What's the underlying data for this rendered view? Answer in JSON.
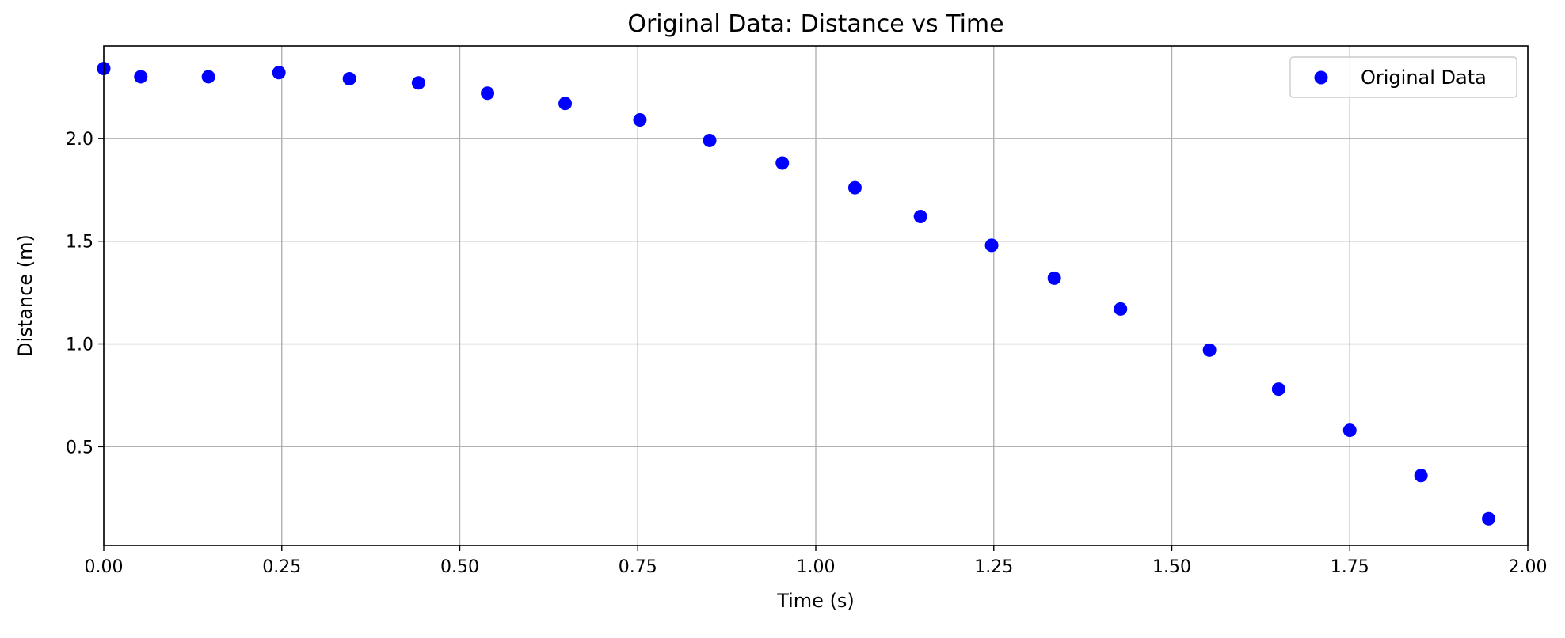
{
  "chart_data": {
    "type": "scatter",
    "title": "Original Data: Distance vs Time",
    "xlabel": "Time (s)",
    "ylabel": "Distance (m)",
    "xlim": [
      0.0,
      2.0
    ],
    "ylim": [
      0.02,
      2.45
    ],
    "x_ticks": [
      0.0,
      0.25,
      0.5,
      0.75,
      1.0,
      1.25,
      1.5,
      1.75,
      2.0
    ],
    "x_tick_labels": [
      "0.00",
      "0.25",
      "0.50",
      "0.75",
      "1.00",
      "1.25",
      "1.50",
      "1.75",
      "2.00"
    ],
    "y_ticks": [
      0.5,
      1.0,
      1.5,
      2.0
    ],
    "y_tick_labels": [
      "0.5",
      "1.0",
      "1.5",
      "2.0"
    ],
    "grid": true,
    "legend_placement": "top-right",
    "series": [
      {
        "name": "Original Data",
        "color": "#0000ff",
        "marker": "circle",
        "points": [
          {
            "x": 0.0,
            "y": 2.34
          },
          {
            "x": 0.052,
            "y": 2.3
          },
          {
            "x": 0.147,
            "y": 2.3
          },
          {
            "x": 0.246,
            "y": 2.32
          },
          {
            "x": 0.345,
            "y": 2.29
          },
          {
            "x": 0.442,
            "y": 2.27
          },
          {
            "x": 0.539,
            "y": 2.22
          },
          {
            "x": 0.648,
            "y": 2.17
          },
          {
            "x": 0.753,
            "y": 2.09
          },
          {
            "x": 0.851,
            "y": 1.99
          },
          {
            "x": 0.953,
            "y": 1.88
          },
          {
            "x": 1.055,
            "y": 1.76
          },
          {
            "x": 1.147,
            "y": 1.62
          },
          {
            "x": 1.247,
            "y": 1.48
          },
          {
            "x": 1.335,
            "y": 1.32
          },
          {
            "x": 1.428,
            "y": 1.17
          },
          {
            "x": 1.553,
            "y": 0.97
          },
          {
            "x": 1.65,
            "y": 0.78
          },
          {
            "x": 1.75,
            "y": 0.58
          },
          {
            "x": 1.85,
            "y": 0.36
          },
          {
            "x": 1.945,
            "y": 0.15
          }
        ]
      }
    ]
  }
}
